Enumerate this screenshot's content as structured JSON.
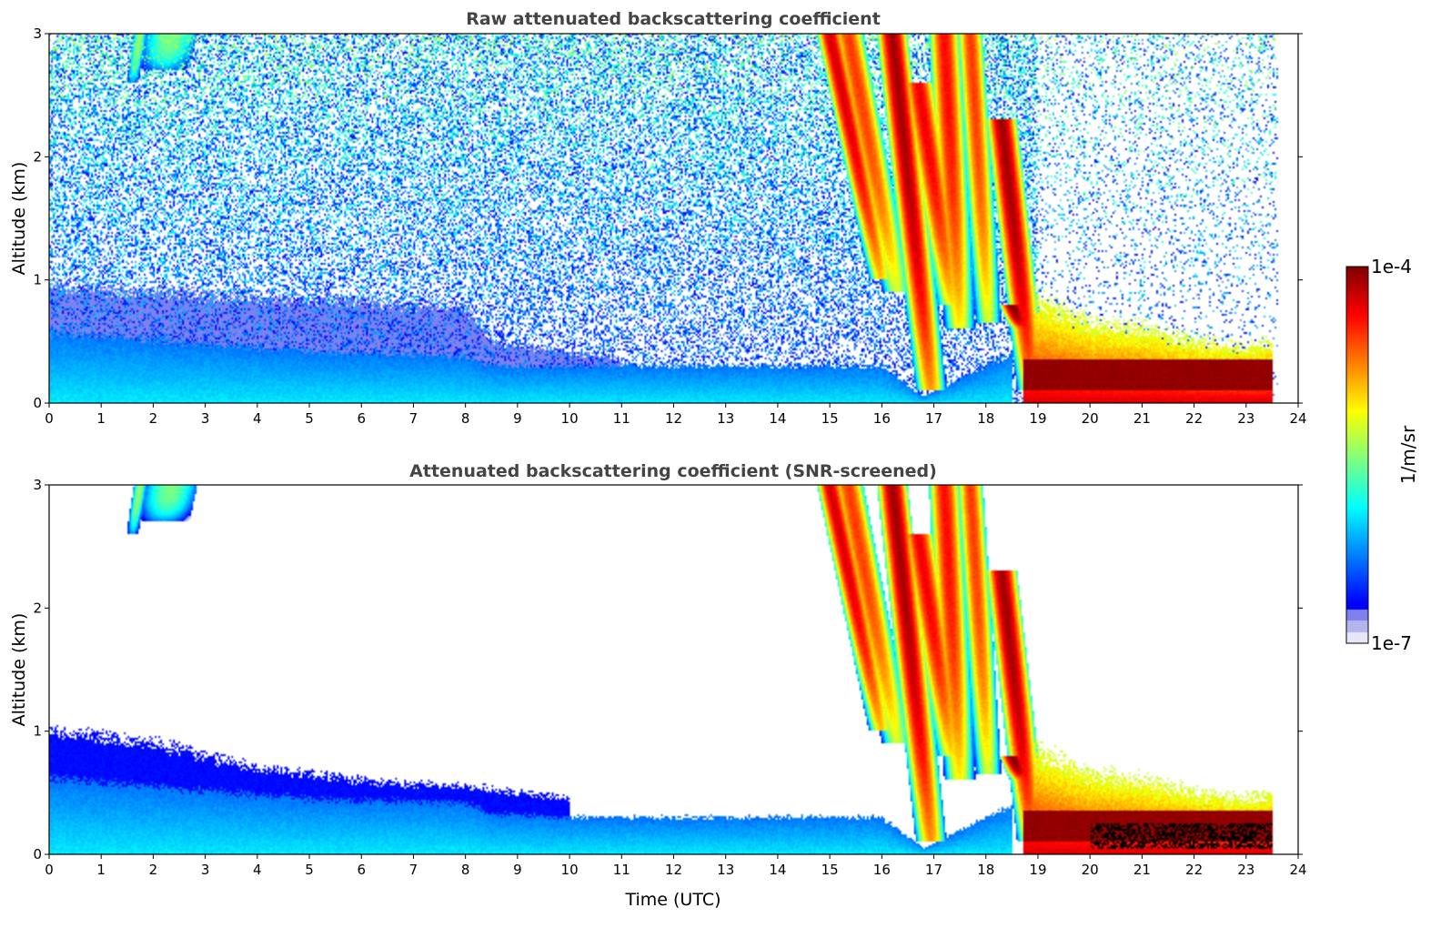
{
  "chart_data": [
    {
      "type": "heatmap",
      "title": "Raw attenuated backscattering coefficient",
      "xlabel": "",
      "ylabel": "Altitude (km)",
      "xlim": [
        0,
        24
      ],
      "ylim": [
        0,
        3
      ],
      "xticks": [
        "0",
        "1",
        "2",
        "3",
        "4",
        "5",
        "6",
        "7",
        "8",
        "9",
        "10",
        "11",
        "12",
        "13",
        "14",
        "15",
        "16",
        "17",
        "18",
        "19",
        "20",
        "21",
        "22",
        "23",
        "24"
      ],
      "yticks": [
        "0",
        "1",
        "2",
        "3"
      ],
      "data_end_time": 23.6,
      "grid": false,
      "noise": "full",
      "features": [
        {
          "kind": "boundary_layer",
          "x": [
            0,
            4,
            5,
            8,
            8.5,
            10,
            16,
            16.8,
            18.5
          ],
          "top_km": [
            0.58,
            0.45,
            0.42,
            0.38,
            0.3,
            0.3,
            0.3,
            0.05,
            0.4
          ],
          "level": 0.2
        },
        {
          "kind": "aerosol_residual",
          "x": [
            0,
            4,
            5,
            8,
            8.5,
            11
          ],
          "top_km": [
            0.95,
            0.85,
            0.85,
            0.78,
            0.5,
            0.35
          ],
          "level": 0.06
        },
        {
          "kind": "cloud_streak",
          "t_top": 1.75,
          "t_bottom": 1.6,
          "km_top": 3.0,
          "km_bottom": 2.6,
          "width_h": 0.12,
          "level": 0.5
        },
        {
          "kind": "cloud_streak",
          "t_top": 2.35,
          "t_bottom": 2.2,
          "km_top": 3.0,
          "km_bottom": 2.7,
          "width_h": 0.5,
          "level": 0.47
        },
        {
          "kind": "cloud_streak",
          "t_top": 15.0,
          "t_bottom": 16.0,
          "km_top": 3.0,
          "km_bottom": 1.0,
          "width_h": 0.25,
          "level": 0.9
        },
        {
          "kind": "cloud_streak",
          "t_top": 15.35,
          "t_bottom": 16.3,
          "km_top": 3.0,
          "km_bottom": 0.9,
          "width_h": 0.3,
          "level": 0.8
        },
        {
          "kind": "cloud_streak",
          "t_top": 16.2,
          "t_bottom": 16.95,
          "km_top": 3.0,
          "km_bottom": 0.1,
          "width_h": 0.3,
          "level": 0.95
        },
        {
          "kind": "cloud_streak",
          "t_top": 16.7,
          "t_bottom": 17.35,
          "km_top": 2.6,
          "km_bottom": 0.8,
          "width_h": 0.3,
          "level": 0.87
        },
        {
          "kind": "cloud_streak",
          "t_top": 17.2,
          "t_bottom": 17.5,
          "km_top": 3.0,
          "km_bottom": 0.6,
          "width_h": 0.3,
          "level": 0.85
        },
        {
          "kind": "cloud_streak",
          "t_top": 17.7,
          "t_bottom": 18.05,
          "km_top": 3.0,
          "km_bottom": 0.65,
          "width_h": 0.25,
          "level": 0.8
        },
        {
          "kind": "cloud_streak",
          "t_top": 18.3,
          "t_bottom": 18.9,
          "km_top": 2.3,
          "km_bottom": 0.1,
          "width_h": 0.3,
          "level": 0.95
        },
        {
          "kind": "cloud_streak",
          "t_top": 18.5,
          "t_bottom": 18.7,
          "km_top": 0.8,
          "km_bottom": 0.6,
          "width_h": 0.25,
          "level": 0.98
        },
        {
          "kind": "low_cloud",
          "x": [
            18.7,
            19.5,
            20.0,
            21.0,
            22.0,
            23.0,
            23.5
          ],
          "top_km": [
            0.9,
            0.75,
            0.65,
            0.6,
            0.5,
            0.45,
            0.5
          ],
          "core": [
            0.1,
            0.35
          ],
          "level": 0.97
        }
      ]
    },
    {
      "type": "heatmap",
      "title": "Attenuated backscattering coefficient (SNR-screened)",
      "xlabel": "Time (UTC)",
      "ylabel": "Altitude (km)",
      "xlim": [
        0,
        24
      ],
      "ylim": [
        0,
        3
      ],
      "xticks": [
        "0",
        "1",
        "2",
        "3",
        "4",
        "5",
        "6",
        "7",
        "8",
        "9",
        "10",
        "11",
        "12",
        "13",
        "14",
        "15",
        "16",
        "17",
        "18",
        "19",
        "20",
        "21",
        "22",
        "23",
        "24"
      ],
      "yticks": [
        "0",
        "1",
        "2",
        "3"
      ],
      "data_end_time": 23.6,
      "grid": false,
      "noise": "screened",
      "features": [
        {
          "kind": "boundary_layer",
          "x": [
            0,
            4,
            5,
            8,
            8.5,
            10,
            16,
            16.8,
            18.5
          ],
          "top_km": [
            0.62,
            0.48,
            0.45,
            0.42,
            0.33,
            0.3,
            0.3,
            0.05,
            0.4
          ],
          "level": 0.2
        },
        {
          "kind": "aerosol_residual",
          "x": [
            0,
            2,
            4,
            6,
            8,
            9,
            10
          ],
          "top_km": [
            1.0,
            0.9,
            0.7,
            0.6,
            0.55,
            0.5,
            0.45
          ],
          "level": 0.1
        },
        {
          "kind": "cloud_streak",
          "t_top": 1.75,
          "t_bottom": 1.6,
          "km_top": 3.0,
          "km_bottom": 2.6,
          "width_h": 0.12,
          "level": 0.5
        },
        {
          "kind": "cloud_streak",
          "t_top": 2.35,
          "t_bottom": 2.2,
          "km_top": 3.0,
          "km_bottom": 2.7,
          "width_h": 0.5,
          "level": 0.47
        },
        {
          "kind": "cloud_streak",
          "t_top": 15.0,
          "t_bottom": 16.0,
          "km_top": 3.0,
          "km_bottom": 1.0,
          "width_h": 0.25,
          "level": 0.9
        },
        {
          "kind": "cloud_streak",
          "t_top": 15.35,
          "t_bottom": 16.3,
          "km_top": 3.0,
          "km_bottom": 0.9,
          "width_h": 0.3,
          "level": 0.8
        },
        {
          "kind": "cloud_streak",
          "t_top": 16.2,
          "t_bottom": 16.95,
          "km_top": 3.0,
          "km_bottom": 0.1,
          "width_h": 0.3,
          "level": 0.95
        },
        {
          "kind": "cloud_streak",
          "t_top": 16.7,
          "t_bottom": 17.35,
          "km_top": 2.6,
          "km_bottom": 0.8,
          "width_h": 0.3,
          "level": 0.87
        },
        {
          "kind": "cloud_streak",
          "t_top": 17.2,
          "t_bottom": 17.5,
          "km_top": 3.0,
          "km_bottom": 0.6,
          "width_h": 0.3,
          "level": 0.85
        },
        {
          "kind": "cloud_streak",
          "t_top": 17.7,
          "t_bottom": 18.05,
          "km_top": 3.0,
          "km_bottom": 0.65,
          "width_h": 0.25,
          "level": 0.8
        },
        {
          "kind": "cloud_streak",
          "t_top": 18.3,
          "t_bottom": 18.9,
          "km_top": 2.3,
          "km_bottom": 0.1,
          "width_h": 0.3,
          "level": 0.95
        },
        {
          "kind": "cloud_streak",
          "t_top": 18.5,
          "t_bottom": 18.7,
          "km_top": 0.8,
          "km_bottom": 0.6,
          "width_h": 0.25,
          "level": 0.98
        },
        {
          "kind": "low_cloud",
          "x": [
            18.7,
            19.5,
            20.0,
            21.0,
            22.0,
            23.0,
            23.5
          ],
          "top_km": [
            0.9,
            0.75,
            0.65,
            0.6,
            0.5,
            0.45,
            0.5
          ],
          "core": [
            0.1,
            0.35
          ],
          "level": 0.97
        },
        {
          "kind": "saturated_core",
          "x": [
            20.0,
            23.5
          ],
          "km": [
            0.05,
            0.25
          ]
        }
      ]
    }
  ],
  "colorbar": {
    "label": "1/m/sr",
    "top_label": "1e-4",
    "bottom_label": "1e-7",
    "colormap": "jet",
    "low_colors": [
      "#e6e6f8",
      "#b4b4ee",
      "#8080ee"
    ]
  }
}
